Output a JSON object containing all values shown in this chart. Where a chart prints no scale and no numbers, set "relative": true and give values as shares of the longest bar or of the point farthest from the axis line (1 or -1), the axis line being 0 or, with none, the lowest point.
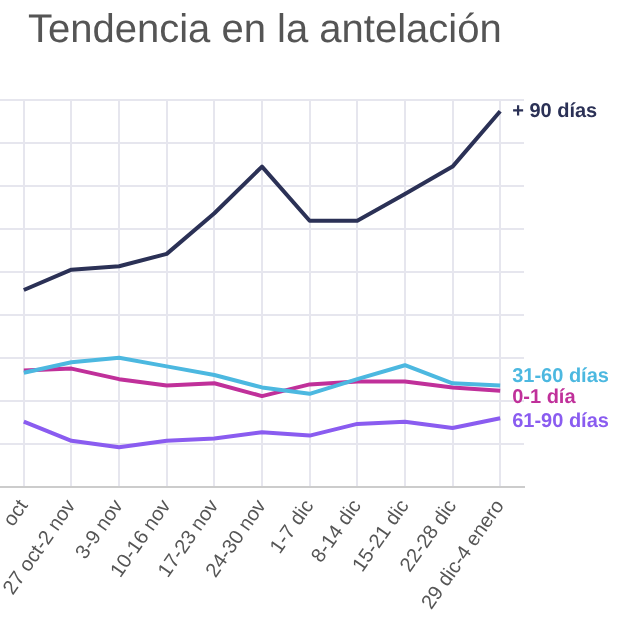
{
  "chart_data": {
    "type": "line",
    "title": "Tendencia en la antelación",
    "relative": true,
    "grid": true,
    "legend": false,
    "marker": "none",
    "categories": [
      "oct",
      "27 oct-2 nov",
      "3-9 nov",
      "10-16 nov",
      "17-23 nov",
      "24-30 nov",
      "1-7 dic",
      "8-14 dic",
      "15-21 dic",
      "22-28 dic",
      "29 dic-4 enero"
    ],
    "series": [
      {
        "name": "+ 90 días",
        "color": "#2b3156",
        "values": [
          0.525,
          0.579,
          0.588,
          0.621,
          0.729,
          0.853,
          0.709,
          0.709,
          0.78,
          0.853,
          1
        ]
      },
      {
        "name": "31-60 días",
        "color": "#4cb8e0",
        "values": [
          0.305,
          0.333,
          0.345,
          0.322,
          0.299,
          0.266,
          0.249,
          0.288,
          0.325,
          0.277,
          0.271
        ]
      },
      {
        "name": "0-1 día",
        "color": "#c0309a",
        "values": [
          0.311,
          0.316,
          0.288,
          0.271,
          0.277,
          0.243,
          0.274,
          0.282,
          0.282,
          0.266,
          0.257
        ]
      },
      {
        "name": "61-90 días",
        "color": "#8a5cf0",
        "values": [
          0.175,
          0.124,
          0.107,
          0.124,
          0.13,
          0.147,
          0.138,
          0.169,
          0.175,
          0.158,
          0.184
        ]
      }
    ]
  }
}
